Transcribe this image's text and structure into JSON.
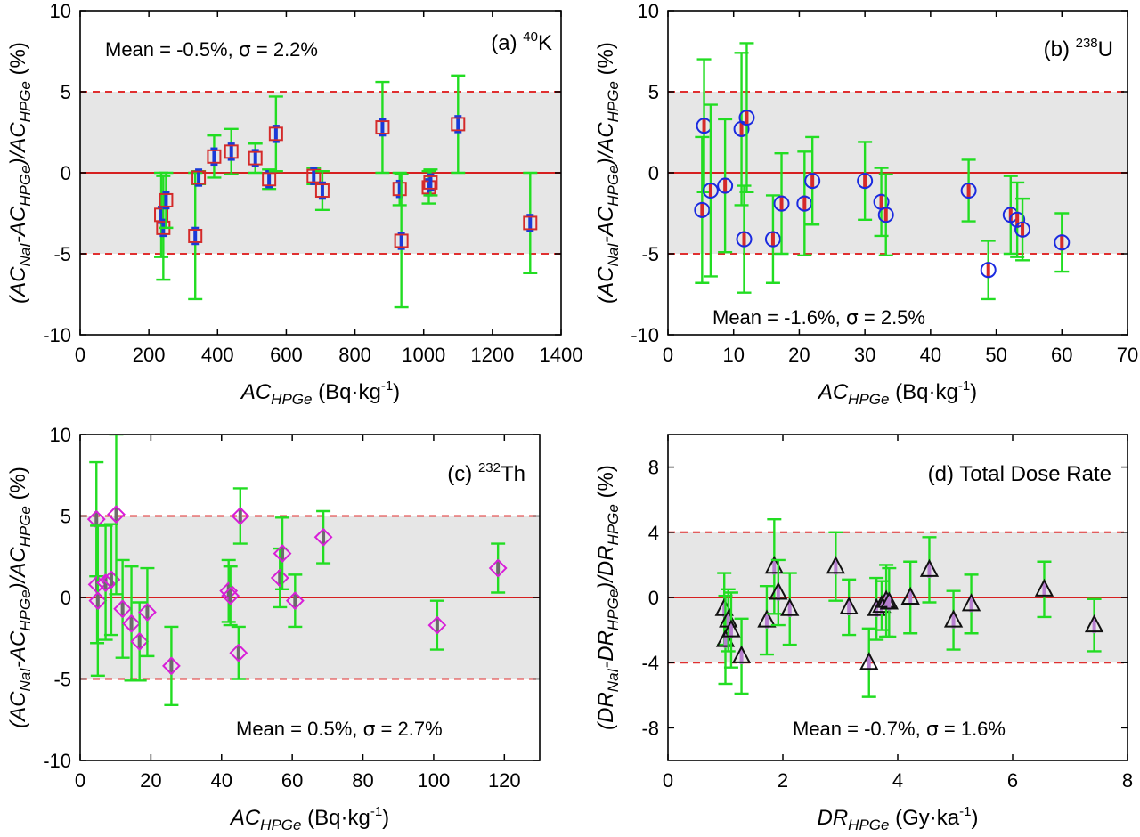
{
  "colors": {
    "band": "#e6e6e6",
    "zero_line": "#d62020",
    "limit_line": "#e03030",
    "error_bar": "#22dd22",
    "inner_bar_blue": "#1a3ad8",
    "inner_bar_grey": "#6b6b6b",
    "inner_bar_violet": "#b77fd0"
  },
  "chart_data": [
    {
      "id": "a",
      "type": "scatter",
      "panel_label": "(a) ",
      "panel_sup": "40",
      "panel_suffix": "K",
      "stats": {
        "prefix": "Mean = -0.5%, ",
        "suffix": " = 2.2%"
      },
      "xlabel": {
        "main": "AC",
        "sub": "HPGe",
        "unit": " (Bq·kg",
        "unit_sup": "-1",
        "unit_close": ")"
      },
      "ylabel": {
        "open": "(AC",
        "s1": "NaI",
        "mid1": "-AC",
        "s2": "HPGe",
        "mid2": ")/AC",
        "s3": "HPGe",
        "close": " (%)"
      },
      "xlim": [
        0,
        1400
      ],
      "ylim": [
        -10,
        10
      ],
      "xticks": [
        0,
        200,
        400,
        600,
        800,
        1000,
        1200,
        1400
      ],
      "xtick_labels": [
        "0",
        "200",
        "400",
        "600",
        "800",
        "1000",
        "1200",
        "1400"
      ],
      "yticks": [
        -10,
        -5,
        0,
        5,
        10
      ],
      "ytick_labels": [
        "-10",
        "-5",
        "0",
        "5",
        "10"
      ],
      "band": [
        -5,
        5
      ],
      "limit_lines": [
        -5,
        5
      ],
      "marker": "square",
      "marker_color": "#d42a2a",
      "inner_color": "#1a3ad8",
      "points": [
        {
          "x": 236,
          "y": -2.6,
          "err": 2.6
        },
        {
          "x": 242,
          "y": -3.4,
          "err": 3.2
        },
        {
          "x": 250,
          "y": -1.7,
          "err": 1.7
        },
        {
          "x": 335,
          "y": -3.9,
          "err": 3.9
        },
        {
          "x": 345,
          "y": -0.3,
          "err": 0.4
        },
        {
          "x": 390,
          "y": 1.0,
          "err": 1.3
        },
        {
          "x": 440,
          "y": 1.3,
          "err": 1.4
        },
        {
          "x": 510,
          "y": 0.9,
          "err": 0.9
        },
        {
          "x": 550,
          "y": -0.4,
          "err": 0.6
        },
        {
          "x": 570,
          "y": 2.4,
          "err": 2.3
        },
        {
          "x": 680,
          "y": -0.2,
          "err": 0.5
        },
        {
          "x": 705,
          "y": -1.1,
          "err": 1.2
        },
        {
          "x": 880,
          "y": 2.8,
          "err": 2.8
        },
        {
          "x": 930,
          "y": -1.0,
          "err": 1.0
        },
        {
          "x": 935,
          "y": -4.2,
          "err": 4.1
        },
        {
          "x": 1015,
          "y": -0.9,
          "err": 1.0
        },
        {
          "x": 1020,
          "y": -0.6,
          "err": 0.8
        },
        {
          "x": 1100,
          "y": 3.0,
          "err": 3.0
        },
        {
          "x": 1310,
          "y": -3.1,
          "err": 3.1
        }
      ]
    },
    {
      "id": "b",
      "type": "scatter",
      "panel_label": "(b) ",
      "panel_sup": "238",
      "panel_suffix": "U",
      "stats": {
        "prefix": "Mean = -1.6%, ",
        "suffix": " = 2.5%"
      },
      "xlabel": {
        "main": "AC",
        "sub": "HPGe",
        "unit": " (Bq·kg",
        "unit_sup": "-1",
        "unit_close": ")"
      },
      "ylabel": {
        "open": "(AC",
        "s1": "NaI",
        "mid1": "-AC",
        "s2": "HPGe",
        "mid2": ")/AC",
        "s3": "HPGe",
        "close": " (%)"
      },
      "xlim": [
        0,
        70
      ],
      "ylim": [
        -10,
        10
      ],
      "xticks": [
        0,
        10,
        20,
        30,
        40,
        50,
        60,
        70
      ],
      "xtick_labels": [
        "0",
        "10",
        "20",
        "30",
        "40",
        "50",
        "60",
        "70"
      ],
      "yticks": [
        -10,
        -5,
        0,
        5,
        10
      ],
      "ytick_labels": [
        "-10",
        "-5",
        "0",
        "5",
        "10"
      ],
      "band": [
        -5,
        5
      ],
      "limit_lines": [
        -5,
        5
      ],
      "marker": "circle",
      "marker_color": "#1a2ae0",
      "inner_color": "#d42a2a",
      "points": [
        {
          "x": 5.2,
          "y": -2.3,
          "err": 4.5
        },
        {
          "x": 5.5,
          "y": 2.9,
          "err": 4.1
        },
        {
          "x": 6.5,
          "y": -1.1,
          "err": 5.3
        },
        {
          "x": 8.7,
          "y": -0.8,
          "err": 4.1
        },
        {
          "x": 11.2,
          "y": 2.7,
          "err": 4.7
        },
        {
          "x": 11.6,
          "y": -4.1,
          "err": 3.3
        },
        {
          "x": 12.0,
          "y": 3.4,
          "err": 4.6
        },
        {
          "x": 16.0,
          "y": -4.1,
          "err": 2.7
        },
        {
          "x": 17.3,
          "y": -1.9,
          "err": 3.1
        },
        {
          "x": 20.8,
          "y": -1.9,
          "err": 3.2
        },
        {
          "x": 22.0,
          "y": -0.5,
          "err": 2.7
        },
        {
          "x": 30.0,
          "y": -0.5,
          "err": 2.4
        },
        {
          "x": 32.5,
          "y": -1.8,
          "err": 2.1
        },
        {
          "x": 33.2,
          "y": -2.6,
          "err": 2.5
        },
        {
          "x": 45.8,
          "y": -1.1,
          "err": 1.9
        },
        {
          "x": 48.8,
          "y": -6.0,
          "err": 1.8
        },
        {
          "x": 52.2,
          "y": -2.6,
          "err": 2.4
        },
        {
          "x": 53.2,
          "y": -2.9,
          "err": 2.3
        },
        {
          "x": 54.0,
          "y": -3.5,
          "err": 1.9
        },
        {
          "x": 60.0,
          "y": -4.3,
          "err": 1.8
        }
      ]
    },
    {
      "id": "c",
      "type": "scatter",
      "panel_label": "(c) ",
      "panel_sup": "232",
      "panel_suffix": "Th",
      "stats": {
        "prefix": "Mean = 0.5%, ",
        "suffix": " = 2.7%"
      },
      "xlabel": {
        "main": "AC",
        "sub": "HPGe",
        "unit": " (Bq·kg",
        "unit_sup": "-1",
        "unit_close": ")"
      },
      "ylabel": {
        "open": "(AC",
        "s1": "NaI",
        "mid1": "-AC",
        "s2": "HPGe",
        "mid2": ")/AC",
        "s3": "HPGe",
        "close": " (%)"
      },
      "xlim": [
        0,
        130
      ],
      "ylim": [
        -10,
        10
      ],
      "xticks": [
        0,
        20,
        40,
        60,
        80,
        100,
        120
      ],
      "xtick_labels": [
        "0",
        "20",
        "40",
        "60",
        "80",
        "100",
        "120"
      ],
      "yticks": [
        -10,
        -5,
        0,
        5,
        10
      ],
      "ytick_labels": [
        "-10",
        "-5",
        "0",
        "5",
        "10"
      ],
      "band": [
        -5,
        5
      ],
      "limit_lines": [
        -5,
        5
      ],
      "marker": "diamond",
      "marker_color": "#d81ed8",
      "inner_color": "#6b6b6b",
      "points": [
        {
          "x": 4.6,
          "y": 4.8,
          "err": 3.5
        },
        {
          "x": 4.8,
          "y": 0.8,
          "err": 3.6
        },
        {
          "x": 5.0,
          "y": -0.2,
          "err": 4.6
        },
        {
          "x": 7.2,
          "y": 0.9,
          "err": 3.5
        },
        {
          "x": 8.8,
          "y": 1.1,
          "err": 3.4
        },
        {
          "x": 10.2,
          "y": 5.1,
          "err": 4.9
        },
        {
          "x": 12.0,
          "y": -0.7,
          "err": 3.0
        },
        {
          "x": 14.5,
          "y": -1.6,
          "err": 3.5
        },
        {
          "x": 16.8,
          "y": -2.7,
          "err": 2.4
        },
        {
          "x": 19.0,
          "y": -0.9,
          "err": 2.7
        },
        {
          "x": 25.8,
          "y": -4.2,
          "err": 2.4
        },
        {
          "x": 42.0,
          "y": 0.4,
          "err": 1.9
        },
        {
          "x": 42.5,
          "y": 0.1,
          "err": 1.8
        },
        {
          "x": 44.8,
          "y": -3.4,
          "err": 1.6
        },
        {
          "x": 45.3,
          "y": 5.0,
          "err": 1.7
        },
        {
          "x": 56.5,
          "y": 1.2,
          "err": 1.8
        },
        {
          "x": 57.2,
          "y": 2.7,
          "err": 2.2
        },
        {
          "x": 60.8,
          "y": -0.2,
          "err": 1.6
        },
        {
          "x": 68.8,
          "y": 3.7,
          "err": 1.6
        },
        {
          "x": 101.0,
          "y": -1.7,
          "err": 1.5
        },
        {
          "x": 118.2,
          "y": 1.8,
          "err": 1.5
        }
      ]
    },
    {
      "id": "d",
      "type": "scatter",
      "panel_label": "(d) Total Dose Rate",
      "panel_sup": "",
      "panel_suffix": "",
      "stats": {
        "prefix": "Mean = -0.7%, ",
        "suffix": " = 1.6%"
      },
      "xlabel": {
        "main": "DR",
        "sub": "HPGe",
        "unit": " (Gy·ka",
        "unit_sup": "-1",
        "unit_close": ")"
      },
      "ylabel": {
        "open": "(DR",
        "s1": "NaI",
        "mid1": "-DR",
        "s2": "HPGe",
        "mid2": ")/DR",
        "s3": "HPGe",
        "close": " (%)"
      },
      "xlim": [
        0,
        8
      ],
      "ylim": [
        -10,
        10
      ],
      "xticks": [
        0,
        2,
        4,
        6,
        8
      ],
      "xtick_labels": [
        "0",
        "2",
        "4",
        "6",
        "8"
      ],
      "yticks": [
        -8,
        -4,
        0,
        4,
        8
      ],
      "ytick_labels": [
        "-8",
        "-4",
        "0",
        "4",
        "8"
      ],
      "band": [
        -4,
        4
      ],
      "limit_lines": [
        -4,
        4
      ],
      "marker": "triangle",
      "marker_color": "#111111",
      "inner_color": "#b77fd0",
      "points": [
        {
          "x": 0.98,
          "y": -0.7,
          "err": 2.2
        },
        {
          "x": 1.0,
          "y": -2.6,
          "err": 2.7
        },
        {
          "x": 1.05,
          "y": -1.4,
          "err": 1.9
        },
        {
          "x": 1.1,
          "y": -2.0,
          "err": 2.3
        },
        {
          "x": 1.28,
          "y": -3.6,
          "err": 2.3
        },
        {
          "x": 1.72,
          "y": -1.4,
          "err": 2.1
        },
        {
          "x": 1.85,
          "y": 1.9,
          "err": 2.9
        },
        {
          "x": 1.92,
          "y": 0.3,
          "err": 2.0
        },
        {
          "x": 2.12,
          "y": -0.7,
          "err": 2.2
        },
        {
          "x": 2.92,
          "y": 1.9,
          "err": 2.1
        },
        {
          "x": 3.15,
          "y": -0.6,
          "err": 1.7
        },
        {
          "x": 3.5,
          "y": -4.0,
          "err": 2.1
        },
        {
          "x": 3.63,
          "y": -0.7,
          "err": 1.9
        },
        {
          "x": 3.72,
          "y": -0.5,
          "err": 1.5
        },
        {
          "x": 3.8,
          "y": -0.2,
          "err": 2.2
        },
        {
          "x": 3.85,
          "y": -0.3,
          "err": 2.1
        },
        {
          "x": 4.22,
          "y": 0.0,
          "err": 2.2
        },
        {
          "x": 4.55,
          "y": 1.7,
          "err": 2.0
        },
        {
          "x": 4.97,
          "y": -1.4,
          "err": 1.8
        },
        {
          "x": 5.28,
          "y": -0.4,
          "err": 1.8
        },
        {
          "x": 6.55,
          "y": 0.5,
          "err": 1.7
        },
        {
          "x": 7.42,
          "y": -1.7,
          "err": 1.6
        }
      ]
    }
  ]
}
